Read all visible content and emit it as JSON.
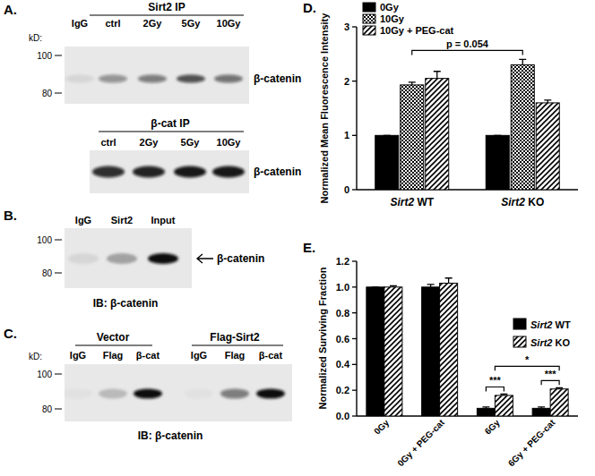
{
  "figure": {
    "panels": [
      {
        "label": "A.",
        "blots": [
          {
            "header": "Sirt2 IP",
            "unit_label": "kD:",
            "markers": [
              100,
              80
            ],
            "lanes": [
              "IgG",
              "ctrl",
              "2Gy",
              "5Gy",
              "10Gy"
            ],
            "intensity": [
              0.08,
              0.4,
              0.5,
              0.7,
              0.55
            ],
            "band_label": "β-catenin"
          },
          {
            "header": "β-cat IP",
            "lanes": [
              "ctrl",
              "2Gy",
              "5Gy",
              "10Gy"
            ],
            "intensity": [
              0.85,
              0.9,
              0.95,
              0.95
            ],
            "band_label": "β-catenin"
          }
        ]
      },
      {
        "label": "B.",
        "blots": [
          {
            "markers": [
              100,
              80
            ],
            "lanes": [
              "IgG",
              "Sirt2",
              "Input"
            ],
            "intensity": [
              0.08,
              0.3,
              1.0
            ],
            "band_label": "β-catenin",
            "blot_label": "IB:  β-catenin"
          }
        ]
      },
      {
        "label": "C.",
        "blots": [
          {
            "unit_label": "kD:",
            "markers": [
              100,
              80
            ],
            "groups": [
              {
                "header": "Vector",
                "lanes": [
                  "IgG",
                  "Flag",
                  "β-cat"
                ],
                "intensity": [
                  0.03,
                  0.2,
                  1.0
                ]
              },
              {
                "header": "Flag-Sirt2",
                "lanes": [
                  "IgG",
                  "Flag",
                  "β-cat"
                ],
                "intensity": [
                  0.03,
                  0.5,
                  1.0
                ]
              }
            ],
            "blot_label": "IB:  β-catenin"
          }
        ]
      }
    ]
  },
  "chart_data": [
    {
      "type": "bar",
      "title": "D.",
      "y_label": "Normalized Mean Fluorescence Intensity",
      "categories": [
        "Sirt2 WT",
        "Sirt2 KO"
      ],
      "series": [
        {
          "name": "0Gy",
          "color": "#000000",
          "values": [
            1,
            1
          ],
          "error": [
            0,
            0
          ]
        },
        {
          "name": "10Gy",
          "color": "#000000",
          "values": [
            1.93,
            2.3
          ],
          "error": [
            0.05,
            0.1
          ]
        },
        {
          "name": "10Gy + PEG-cat",
          "color": "#000000",
          "values": [
            2.05,
            1.6
          ],
          "error": [
            0.13,
            0.05
          ]
        }
      ],
      "ylim": [
        0,
        3
      ],
      "yticks": [
        0,
        1,
        2,
        3
      ],
      "legend": "upper left",
      "annotations": [
        "p = 0.054"
      ]
    },
    {
      "type": "bar",
      "title": "E.",
      "y_label": "Normalized Surviving Fraction",
      "categories": [
        "0Gy",
        "0Gy + PEG-cat",
        "6Gy",
        "6Gy + PEG-cat"
      ],
      "series": [
        {
          "name": "Sirt2 WT",
          "color": "#000000",
          "values": [
            1,
            1.0,
            0.06,
            0.06
          ],
          "error": [
            0,
            0.02,
            0.01,
            0.01
          ]
        },
        {
          "name": "Sirt2 KO",
          "color": "#000000",
          "values": [
            1.0,
            1.03,
            0.16,
            0.21
          ],
          "error": [
            0.01,
            0.04,
            0.01,
            0.01
          ]
        }
      ],
      "ylim": [
        0,
        1.2
      ],
      "yticks": [
        {
          "value": 0,
          "label": "0.0"
        },
        {
          "value": 0.2,
          "label": "0.2"
        },
        {
          "value": 0.4,
          "label": "0.4"
        },
        {
          "value": 0.6,
          "label": "0.6"
        },
        {
          "value": 0.8,
          "label": "0.8"
        },
        {
          "value": 1,
          "label": "1.0"
        },
        {
          "value": 1.2,
          "label": "1.2"
        }
      ],
      "legend": "right",
      "annotations": [
        "***",
        "***",
        "*"
      ]
    }
  ]
}
